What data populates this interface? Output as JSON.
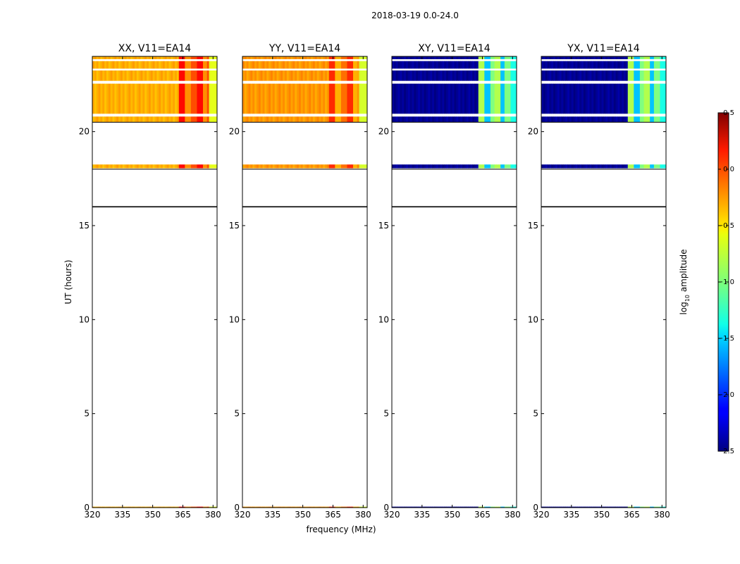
{
  "figure": {
    "title": "2018-03-19 0.0-24.0",
    "xlabel": "frequency (MHz)",
    "ylabel": "UT (hours)"
  },
  "chart_data": {
    "type": "heatmap",
    "x_ticks": [
      320,
      335,
      350,
      365,
      380
    ],
    "y_ticks": [
      0,
      5,
      10,
      15,
      20
    ],
    "xlim": [
      320,
      382
    ],
    "ylim": [
      0,
      24
    ],
    "colorbar": {
      "label_main": "log",
      "label_sub": "10",
      "label_rest": " amplitude",
      "range": [
        -2.5,
        0.5
      ],
      "ticks": [
        0.5,
        0.0,
        -0.5,
        -1.0,
        -1.5,
        -2.0,
        -2.5
      ],
      "tick_labels": [
        "0.5",
        "0.0",
        "−0.5",
        "−1.0",
        "−1.5",
        "−2.0",
        "−2.5"
      ],
      "colormap": "jet"
    },
    "horizontal_lines_hours": [
      16,
      18,
      20.5
    ],
    "data_bands_hours": [
      [
        20.5,
        20.8
      ],
      [
        20.95,
        22.55
      ],
      [
        22.7,
        23.25
      ],
      [
        23.35,
        23.75
      ],
      [
        23.85,
        24.0
      ],
      [
        18.05,
        18.25
      ],
      [
        0.0,
        0.05
      ]
    ],
    "panels": [
      {
        "title": "XX, V11=EA14",
        "base_level": -0.45,
        "hot_range_mhz": [
          363.5,
          381
        ],
        "hot_level": 0.05,
        "edge_mhz": 378,
        "edge_level": -0.7
      },
      {
        "title": "YY, V11=EA14",
        "base_level": -0.38,
        "hot_range_mhz": [
          363.5,
          377
        ],
        "hot_level": -0.05,
        "edge_mhz": 378,
        "edge_level": -0.75
      },
      {
        "title": "XY, V11=EA14",
        "base_level": -2.5,
        "hot_range_mhz": [
          363.5,
          379
        ],
        "hot_level": -1.0,
        "edge_mhz": 379,
        "edge_level": -1.3
      },
      {
        "title": "YX, V11=EA14",
        "base_level": -2.5,
        "hot_range_mhz": [
          363.5,
          379
        ],
        "hot_level": -1.0,
        "edge_mhz": 379,
        "edge_level": -1.3
      }
    ]
  }
}
